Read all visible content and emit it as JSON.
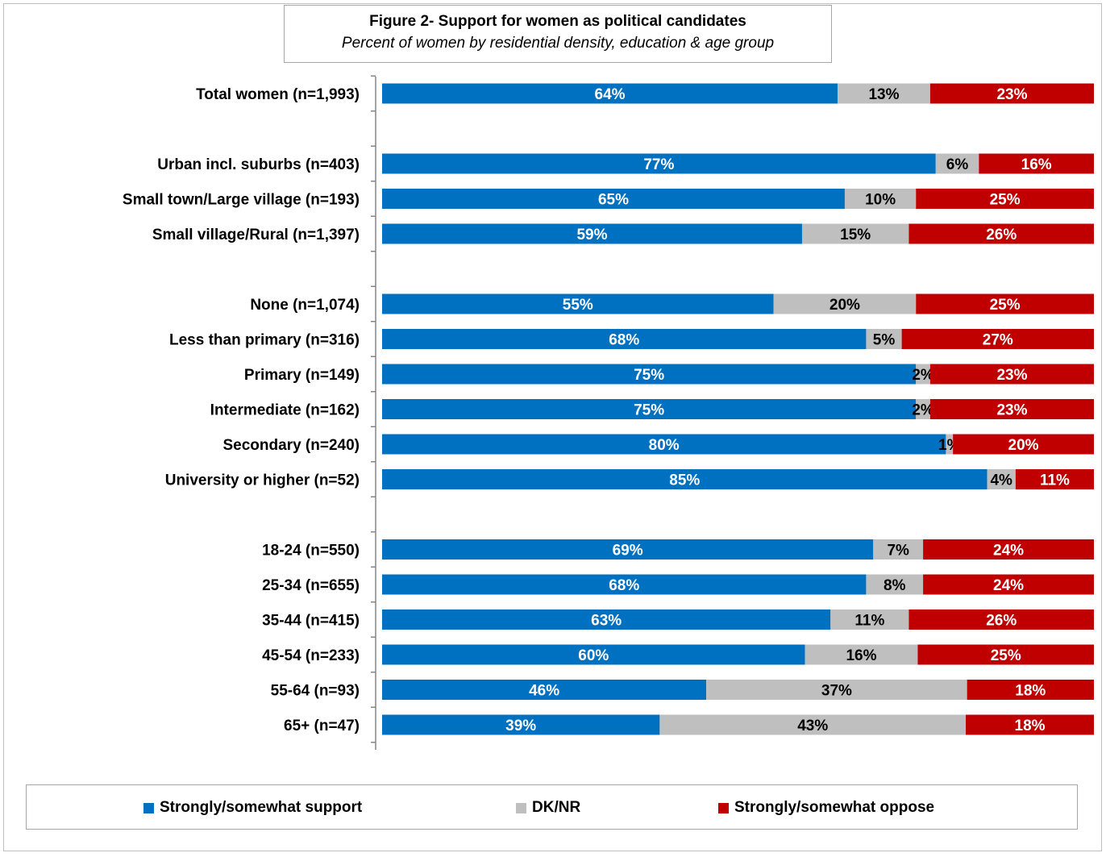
{
  "chart_data": {
    "type": "bar",
    "orientation": "horizontal-stacked-100",
    "title": "Figure 2- Support for women as political candidates",
    "subtitle": "Percent of women by residential density, education & age group",
    "series": [
      {
        "name": "Strongly/somewhat support",
        "color": "#0070c0"
      },
      {
        "name": "DK/NR",
        "color": "#bfbfbf"
      },
      {
        "name": "Strongly/somewhat oppose",
        "color": "#c00000"
      }
    ],
    "rows": [
      {
        "label": "Total women (n=1,993)",
        "values": [
          64,
          13,
          23
        ],
        "labels": [
          "64%",
          "13%",
          "23%"
        ]
      },
      {
        "label": "",
        "values": null
      },
      {
        "label": "Urban incl. suburbs (n=403)",
        "values": [
          77,
          6,
          16
        ],
        "labels": [
          "77%",
          "6%",
          "16%"
        ]
      },
      {
        "label": "Small town/Large village (n=193)",
        "values": [
          65,
          10,
          25
        ],
        "labels": [
          "65%",
          "10%",
          "25%"
        ]
      },
      {
        "label": "Small village/Rural (n=1,397)",
        "values": [
          59,
          15,
          26
        ],
        "labels": [
          "59%",
          "15%",
          "26%"
        ]
      },
      {
        "label": "",
        "values": null
      },
      {
        "label": "None (n=1,074)",
        "values": [
          55,
          20,
          25
        ],
        "labels": [
          "55%",
          "20%",
          "25%"
        ]
      },
      {
        "label": "Less than primary (n=316)",
        "values": [
          68,
          5,
          27
        ],
        "labels": [
          "68%",
          "5%",
          "27%"
        ]
      },
      {
        "label": "Primary (n=149)",
        "values": [
          75,
          2,
          23
        ],
        "labels": [
          "75%",
          "2%",
          "23%"
        ]
      },
      {
        "label": "Intermediate (n=162)",
        "values": [
          75,
          2,
          23
        ],
        "labels": [
          "75%",
          "2%",
          "23%"
        ]
      },
      {
        "label": "Secondary (n=240)",
        "values": [
          80,
          1,
          20
        ],
        "labels": [
          "80%",
          "1%",
          "20%"
        ]
      },
      {
        "label": "University or higher (n=52)",
        "values": [
          85,
          4,
          11
        ],
        "labels": [
          "85%",
          "4%",
          "11%"
        ]
      },
      {
        "label": "",
        "values": null
      },
      {
        "label": "18-24 (n=550)",
        "values": [
          69,
          7,
          24
        ],
        "labels": [
          "69%",
          "7%",
          "24%"
        ]
      },
      {
        "label": "25-34 (n=655)",
        "values": [
          68,
          8,
          24
        ],
        "labels": [
          "68%",
          "8%",
          "24%"
        ]
      },
      {
        "label": "35-44 (n=415)",
        "values": [
          63,
          11,
          26
        ],
        "labels": [
          "63%",
          "11%",
          "26%"
        ]
      },
      {
        "label": "45-54 (n=233)",
        "values": [
          60,
          16,
          25
        ],
        "labels": [
          "60%",
          "16%",
          "25%"
        ]
      },
      {
        "label": "55-64 (n=93)",
        "values": [
          46,
          37,
          18
        ],
        "labels": [
          "46%",
          "37%",
          "18%"
        ]
      },
      {
        "label": "65+ (n=47)",
        "values": [
          39,
          43,
          18
        ],
        "labels": [
          "39%",
          "43%",
          "18%"
        ]
      }
    ],
    "legend_position": "bottom",
    "grid": false
  }
}
